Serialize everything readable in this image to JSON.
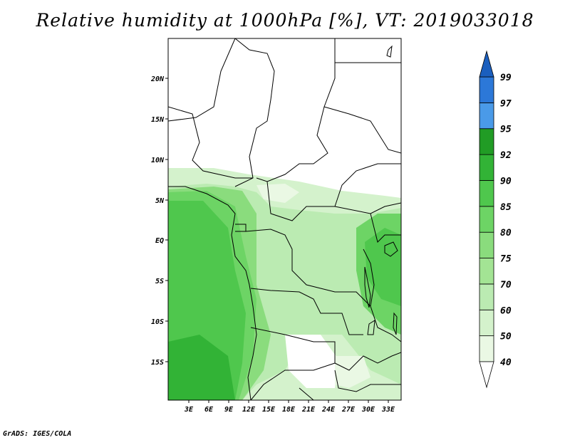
{
  "title": "Relative humidity at 1000hPa [%], VT: 2019033018",
  "footer": "GrADS: IGES/COLA",
  "map": {
    "lon_ticks": [
      "3E",
      "6E",
      "9E",
      "12E",
      "15E",
      "18E",
      "21E",
      "24E",
      "27E",
      "30E",
      "33E"
    ],
    "lat_ticks": [
      "20N",
      "15N",
      "10N",
      "5N",
      "EQ",
      "5S",
      "10S",
      "15S"
    ]
  },
  "colorbar": {
    "levels": [
      "40",
      "50",
      "60",
      "70",
      "75",
      "80",
      "85",
      "90",
      "92",
      "95",
      "97",
      "99"
    ],
    "colors": [
      "#ffffff",
      "#eaf8e4",
      "#d4f2cc",
      "#bbebb2",
      "#a3e494",
      "#8adc7d",
      "#6dd465",
      "#4fc74d",
      "#32b336",
      "#219c25",
      "#4a9ae8",
      "#2c78d8",
      "#1b5fbe"
    ]
  }
}
